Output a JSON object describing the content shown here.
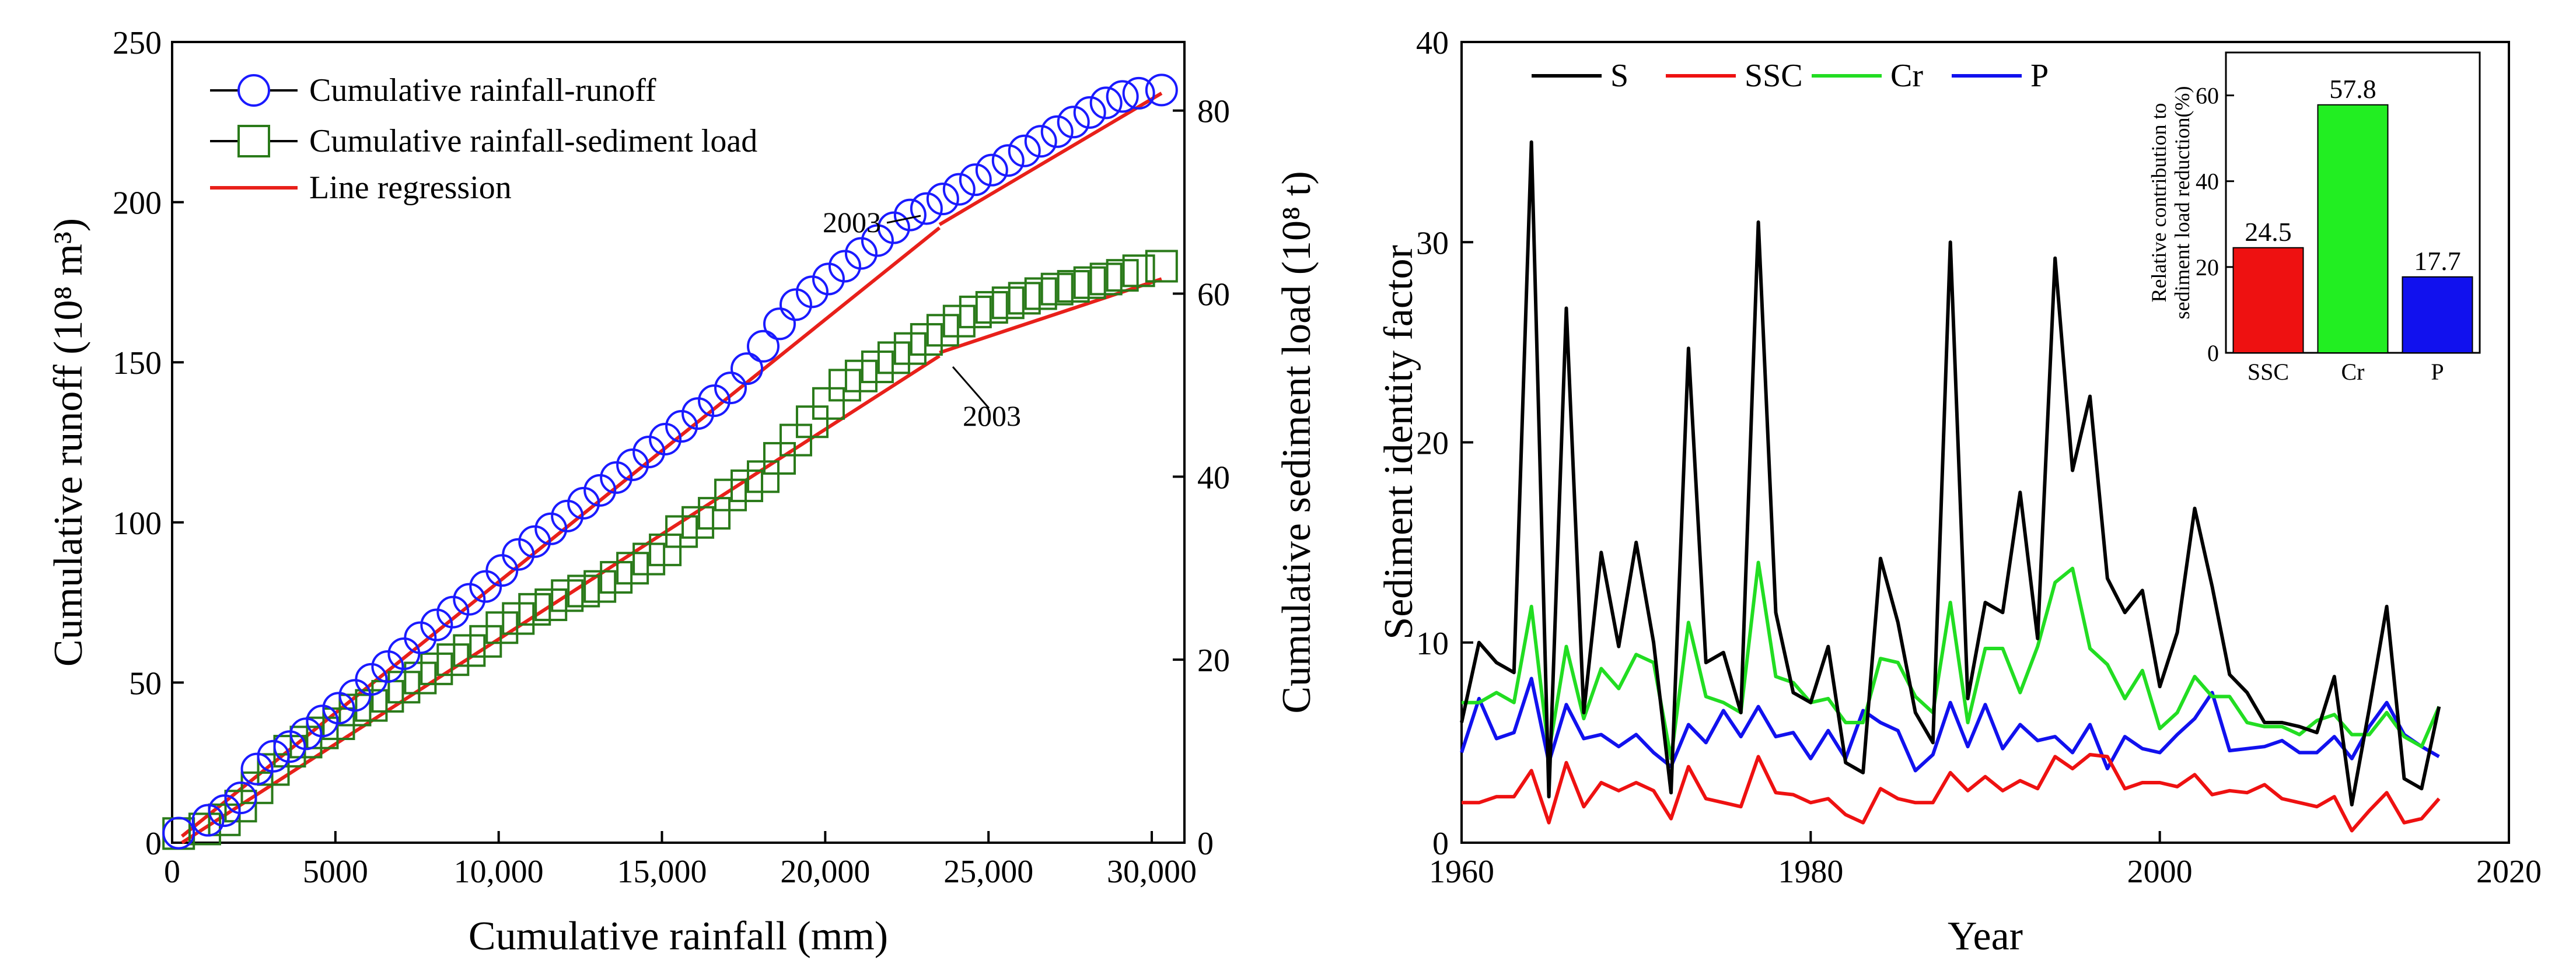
{
  "chart_data": [
    {
      "type": "scatter",
      "title": "",
      "xlabel": "Cumulative rainfall (mm)",
      "ylabel_left": "Cumulative runoff (10⁸ m³)",
      "ylabel_right": "Cumulative sediment load (10⁸ t)",
      "xlim": [
        0,
        31000
      ],
      "ylim_left": [
        0,
        250
      ],
      "ylim_right": [
        0,
        87.5
      ],
      "xticks": [
        0,
        5000,
        10000,
        15000,
        20000,
        25000,
        30000
      ],
      "xtick_labels": [
        "0",
        "5000",
        "10,000",
        "15,000",
        "20,000",
        "25,000",
        "30,000"
      ],
      "yticks_left": [
        0,
        50,
        100,
        150,
        200,
        250
      ],
      "yticks_right": [
        0,
        20,
        40,
        60,
        80
      ],
      "legend": [
        "Cumulative rainfall-runoff",
        "Cumulative rainfall-sediment load",
        "Line regression"
      ],
      "annotations": [
        "2003",
        "2003"
      ],
      "colors": {
        "runoff": "#1a1aff",
        "sediment": "#2a7a1a",
        "regression": "#e8201a"
      },
      "series": [
        {
          "name": "Cumulative rainfall-runoff",
          "axis": "left",
          "marker": "circle",
          "x": [
            200,
            1100,
            1600,
            2100,
            2600,
            3100,
            3600,
            4100,
            4600,
            5100,
            5600,
            6100,
            6600,
            7100,
            7600,
            8100,
            8600,
            9100,
            9600,
            10100,
            10600,
            11100,
            11600,
            12100,
            12600,
            13100,
            13600,
            14100,
            14600,
            15100,
            15600,
            16100,
            16600,
            17100,
            17600,
            18100,
            18600,
            19100,
            19600,
            20100,
            20600,
            21100,
            21600,
            22100,
            22600,
            23100,
            23600,
            24100,
            24600,
            25100,
            25600,
            26100,
            26600,
            27100,
            27600,
            28100,
            28600,
            29100,
            29600,
            30300
          ],
          "y": [
            3,
            7,
            10,
            14,
            23,
            27,
            30,
            34,
            38,
            42,
            46,
            51,
            55,
            59,
            64,
            68,
            72,
            76,
            80,
            85,
            90,
            94,
            98,
            102,
            106,
            110,
            114,
            118,
            122,
            126,
            130,
            134,
            138,
            142,
            148,
            155,
            162,
            168,
            172,
            176,
            180,
            184,
            188,
            192,
            196,
            198,
            201,
            204,
            207,
            210,
            213,
            216,
            219,
            222,
            225,
            228,
            231,
            233,
            234,
            235
          ]
        },
        {
          "name": "Cumulative rainfall-sediment load",
          "axis": "right",
          "marker": "square",
          "x": [
            200,
            1000,
            1600,
            2100,
            2600,
            3100,
            3600,
            4100,
            4600,
            5100,
            5600,
            6100,
            6600,
            7100,
            7600,
            8100,
            8600,
            9100,
            9600,
            10100,
            10600,
            11100,
            11600,
            12100,
            12600,
            13100,
            13600,
            14100,
            14600,
            15100,
            15600,
            16100,
            16600,
            17100,
            17600,
            18100,
            18600,
            19100,
            19600,
            20100,
            20600,
            21100,
            21600,
            22100,
            22600,
            23100,
            23600,
            24100,
            24600,
            25100,
            25600,
            26100,
            26600,
            27100,
            27600,
            28100,
            28600,
            29100,
            29600,
            30300
          ],
          "y": [
            1,
            1.5,
            2.5,
            4,
            6,
            8,
            10,
            11,
            12,
            13,
            14.5,
            15,
            16,
            17,
            18,
            19,
            20,
            21,
            22,
            23.5,
            24.5,
            25.5,
            26,
            27,
            27.5,
            28,
            29,
            30,
            31,
            32,
            34,
            35,
            36,
            38,
            39,
            40,
            42,
            44,
            46,
            48,
            50,
            51,
            52,
            53,
            54,
            55,
            56,
            57,
            58,
            58.5,
            59,
            59.5,
            60,
            60.5,
            60.8,
            61.2,
            61.6,
            62,
            62.5,
            63
          ]
        },
        {
          "name": "Line regression",
          "axis": "left",
          "segments": [
            [
              [
                300,
                2
              ],
              [
                23500,
                192
              ]
            ],
            [
              [
                23500,
                193
              ],
              [
                30300,
                234
              ]
            ],
            [
              [
                300,
                0
              ],
              [
                23500,
                152
              ]
            ],
            [
              [
                23500,
                153
              ],
              [
                30300,
                176
              ]
            ]
          ]
        }
      ]
    },
    {
      "type": "line",
      "title": "",
      "xlabel": "Year",
      "ylabel": "Sediment identity factor",
      "xlim": [
        1960,
        2020
      ],
      "ylim": [
        0,
        40
      ],
      "xticks": [
        1960,
        1980,
        2000,
        2020
      ],
      "yticks": [
        0,
        10,
        20,
        30,
        40
      ],
      "legend": [
        "S",
        "SSC",
        "Cr",
        "P"
      ],
      "colors": {
        "S": "#000000",
        "SSC": "#ee1111",
        "Cr": "#22dd22",
        "P": "#1111ee"
      },
      "x": [
        1960,
        1961,
        1962,
        1963,
        1964,
        1965,
        1966,
        1967,
        1968,
        1969,
        1970,
        1971,
        1972,
        1973,
        1974,
        1975,
        1976,
        1977,
        1978,
        1979,
        1980,
        1981,
        1982,
        1983,
        1984,
        1985,
        1986,
        1987,
        1988,
        1989,
        1990,
        1991,
        1992,
        1993,
        1994,
        1995,
        1996,
        1997,
        1998,
        1999,
        2000,
        2001,
        2002,
        2003,
        2004,
        2005,
        2006,
        2007,
        2008,
        2009,
        2010,
        2011,
        2012,
        2013,
        2014,
        2015,
        2016
      ],
      "series": [
        {
          "name": "S",
          "values": [
            6,
            10,
            9,
            8.5,
            35,
            2.3,
            26.7,
            6.5,
            14.5,
            9.8,
            15,
            10,
            2.5,
            24.7,
            9,
            9.5,
            6.5,
            31,
            11.5,
            7.5,
            7,
            9.8,
            4,
            3.5,
            14.2,
            11,
            6.5,
            5,
            30,
            7.2,
            12,
            11.5,
            17.5,
            10.2,
            29.2,
            18.6,
            22.3,
            13.2,
            11.5,
            12.6,
            7.8,
            10.5,
            16.7,
            12.8,
            8.4,
            7.5,
            6,
            6,
            5.8,
            5.5,
            8.3,
            1.9,
            6.7,
            11.8,
            3.2,
            2.7,
            6.8
          ]
        },
        {
          "name": "SSC",
          "values": [
            2,
            2,
            2.3,
            2.3,
            3.6,
            1,
            4,
            1.8,
            3,
            2.6,
            3,
            2.6,
            1.2,
            3.8,
            2.2,
            2,
            1.8,
            4.3,
            2.5,
            2.4,
            2,
            2.2,
            1.4,
            1,
            2.7,
            2.2,
            2,
            2,
            3.5,
            2.6,
            3.3,
            2.6,
            3.1,
            2.7,
            4.3,
            3.7,
            4.4,
            4.3,
            2.7,
            3,
            3,
            2.8,
            3.4,
            2.4,
            2.6,
            2.5,
            2.9,
            2.2,
            2,
            1.8,
            2.3,
            0.6,
            1.6,
            2.5,
            1,
            1.2,
            2.2
          ]
        },
        {
          "name": "Cr",
          "values": [
            7,
            7,
            7.5,
            7,
            11.8,
            4.5,
            9.8,
            6.2,
            8.7,
            7.7,
            9.4,
            9,
            4.2,
            11,
            7.3,
            7,
            6.5,
            14,
            8.3,
            8,
            7,
            7.2,
            6,
            6,
            9.2,
            9,
            7.3,
            6.5,
            12,
            6,
            9.7,
            9.7,
            7.5,
            9.8,
            13,
            13.7,
            9.7,
            8.9,
            7.2,
            8.6,
            5.7,
            6.5,
            8.3,
            7.3,
            7.3,
            6,
            5.8,
            5.8,
            5.4,
            6.1,
            6.4,
            5.4,
            5.4,
            6.5,
            5.3,
            4.8,
            6.8
          ]
        },
        {
          "name": "P",
          "values": [
            4.5,
            7.2,
            5.2,
            5.5,
            8.2,
            4,
            6.9,
            5.2,
            5.4,
            4.8,
            5.4,
            4.5,
            3.8,
            5.9,
            5,
            6.6,
            5.3,
            6.8,
            5.3,
            5.5,
            4.2,
            5.6,
            4.2,
            6.6,
            6,
            5.6,
            3.6,
            4.4,
            7,
            4.8,
            6.9,
            4.7,
            5.9,
            5.1,
            5.3,
            4.5,
            5.9,
            3.7,
            5.3,
            4.7,
            4.5,
            5.4,
            6.2,
            7.5,
            4.6,
            4.7,
            4.8,
            5.1,
            4.5,
            4.5,
            5.3,
            4.2,
            5.8,
            7,
            5.4,
            4.8,
            4.3
          ]
        }
      ],
      "inset": {
        "type": "bar",
        "ylabel": "Relative contribution to\nsediment load reduction(%)",
        "ylabel_lines": [
          "Relative contribution to",
          "sediment load reduction(%)"
        ],
        "categories": [
          "SSC",
          "Cr",
          "P"
        ],
        "values": [
          24.5,
          57.8,
          17.7
        ],
        "value_labels": [
          "24.5",
          "57.8",
          "17.7"
        ],
        "ylim": [
          0,
          70
        ],
        "yticks": [
          0,
          20,
          40,
          60
        ],
        "colors": [
          "#ee1111",
          "#22ee22",
          "#1111ee"
        ]
      }
    }
  ]
}
